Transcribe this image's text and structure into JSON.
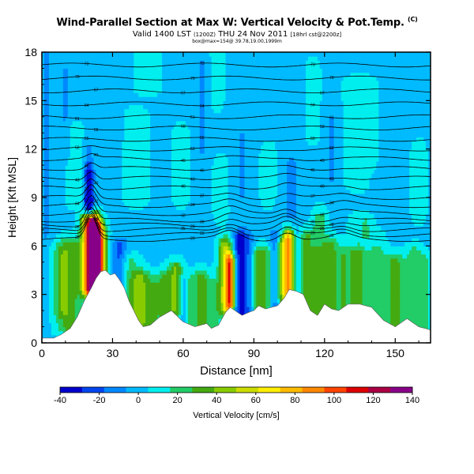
{
  "header": {
    "title": "Wind-Parallel Section at Max W: Vertical Velocity & Pot.Temp.",
    "title_mark": "(C)",
    "valid_line": "Valid 1400 LST",
    "valid_small": "(1200Z)",
    "valid_date": "THU 24 Nov 2011",
    "valid_note": "[18hrl cst@2200z]",
    "region_line": "box@max=154@ 39.78,19.00,1999m"
  },
  "colors": {
    "scale": [
      "#0000cc",
      "#0044ee",
      "#0088ff",
      "#00bbff",
      "#00eeee",
      "#22cc66",
      "#44aa11",
      "#88cc00",
      "#ccdd00",
      "#ffee00",
      "#ffbb00",
      "#ff8800",
      "#ff4400",
      "#dd0000",
      "#aa0044",
      "#880088"
    ],
    "terrain": "#ffffff",
    "isentrope": "#000000"
  },
  "chart_data": {
    "type": "heatmap",
    "title": "Wind-Parallel Section at Max W: Vertical Velocity & Pot.Temp.",
    "xlabel": "Distance [nm]",
    "ylabel": "Height [Kft MSL]",
    "xlim": [
      0,
      165
    ],
    "ylim": [
      0,
      18
    ],
    "xticks": [
      0,
      30,
      60,
      90,
      120,
      150
    ],
    "yticks": [
      0,
      3,
      6,
      9,
      12,
      15,
      18
    ],
    "colorbar": {
      "label": "Vertical Velocity [cm/s]",
      "min": -40,
      "max": 140,
      "ticks": [
        -40,
        -20,
        0,
        20,
        40,
        60,
        80,
        100,
        120,
        140
      ]
    },
    "terrain_profile": {
      "x": [
        0,
        5,
        8,
        12,
        15,
        18,
        21,
        23,
        25,
        27,
        29,
        31,
        33,
        35,
        37,
        39,
        41,
        43,
        46,
        50,
        55,
        60,
        65,
        70,
        72,
        75,
        78,
        80,
        83,
        85,
        88,
        90,
        92,
        95,
        100,
        103,
        105,
        108,
        111,
        114,
        117,
        120,
        123,
        126,
        130,
        135,
        140,
        145,
        150,
        155,
        160,
        165
      ],
      "y": [
        0.3,
        0.3,
        0.5,
        0.9,
        1.6,
        2.6,
        3.4,
        4.0,
        4.4,
        4.5,
        4.2,
        4.3,
        3.9,
        3.4,
        2.6,
        2.0,
        1.4,
        1.0,
        1.1,
        1.6,
        2.0,
        1.3,
        1.0,
        1.2,
        0.9,
        1.1,
        1.9,
        2.2,
        1.9,
        1.7,
        1.9,
        2.0,
        2.3,
        2.1,
        2.3,
        2.8,
        3.3,
        3.2,
        3.0,
        2.0,
        1.7,
        2.4,
        2.1,
        2.0,
        2.4,
        2.4,
        2.2,
        1.4,
        1.0,
        1.5,
        1.0,
        0.8
      ]
    },
    "isentropes": {
      "units": "potential temperature",
      "levels": [
        {
          "h": 6.4,
          "label": "20"
        },
        {
          "h": 6.7,
          "label": "23"
        },
        {
          "h": 7.0,
          "label": "25"
        },
        {
          "h": 7.3,
          "label": "28"
        },
        {
          "h": 7.6,
          "label": "30"
        },
        {
          "h": 8.0,
          "label": "32"
        },
        {
          "h": 8.5,
          "label": "34"
        },
        {
          "h": 9.0,
          "label": "37"
        },
        {
          "h": 9.6,
          "label": "40"
        },
        {
          "h": 10.2,
          "label": "43"
        },
        {
          "h": 10.8,
          "label": "46"
        },
        {
          "h": 11.4,
          "label": "49"
        },
        {
          "h": 12.0,
          "label": "52"
        },
        {
          "h": 12.6,
          "label": "55"
        },
        {
          "h": 13.3,
          "label": "58"
        },
        {
          "h": 14.0,
          "label": "61"
        },
        {
          "h": 14.8,
          "label": "64"
        },
        {
          "h": 15.6,
          "label": "67"
        },
        {
          "h": 16.4,
          "label": "70"
        },
        {
          "h": 17.2,
          "label": "73"
        }
      ]
    },
    "features": [
      {
        "x": 21,
        "ylo": 3.4,
        "yhi": 7.5,
        "w": 3.5,
        "value": 140
      },
      {
        "x": 24,
        "ylo": 3.6,
        "yhi": 7.0,
        "w": 2.5,
        "value": 60
      },
      {
        "x": 26,
        "ylo": 4.0,
        "yhi": 6.5,
        "w": 2.5,
        "value": 25
      },
      {
        "x": 12,
        "ylo": 1.0,
        "yhi": 6.0,
        "w": 5.0,
        "value": 30
      },
      {
        "x": 8,
        "ylo": 2.0,
        "yhi": 5.5,
        "w": 3.0,
        "value": 18
      },
      {
        "x": 33,
        "ylo": 3.0,
        "yhi": 6.0,
        "w": 3.5,
        "value": -25
      },
      {
        "x": 37,
        "ylo": 2.0,
        "yhi": 5.0,
        "w": 4.0,
        "value": 20
      },
      {
        "x": 42,
        "ylo": 1.2,
        "yhi": 4.0,
        "w": 4.0,
        "value": 35
      },
      {
        "x": 47,
        "ylo": 1.3,
        "yhi": 3.5,
        "w": 3.0,
        "value": 20
      },
      {
        "x": 52,
        "ylo": 1.8,
        "yhi": 4.0,
        "w": 3.0,
        "value": 28
      },
      {
        "x": 57,
        "ylo": 2.0,
        "yhi": 4.5,
        "w": 3.0,
        "value": 38
      },
      {
        "x": 60,
        "ylo": 1.4,
        "yhi": 3.8,
        "w": 2.5,
        "value": -20
      },
      {
        "x": 63,
        "ylo": 1.2,
        "yhi": 3.8,
        "w": 3.0,
        "value": 20
      },
      {
        "x": 68,
        "ylo": 1.2,
        "yhi": 4.0,
        "w": 3.0,
        "value": 28
      },
      {
        "x": 73,
        "ylo": 1.2,
        "yhi": 3.5,
        "w": 3.0,
        "value": 18
      },
      {
        "x": 78,
        "ylo": 2.2,
        "yhi": 6.0,
        "w": 3.0,
        "value": 50
      },
      {
        "x": 80,
        "ylo": 2.5,
        "yhi": 5.0,
        "w": 2.0,
        "value": 75
      },
      {
        "x": 84,
        "ylo": 2.0,
        "yhi": 6.5,
        "w": 3.0,
        "value": -35
      },
      {
        "x": 88,
        "ylo": 2.0,
        "yhi": 6.5,
        "w": 3.0,
        "value": -15
      },
      {
        "x": 92,
        "ylo": 2.3,
        "yhi": 5.5,
        "w": 3.0,
        "value": 30
      },
      {
        "x": 96,
        "ylo": 2.3,
        "yhi": 5.5,
        "w": 2.5,
        "value": 20
      },
      {
        "x": 99,
        "ylo": 2.3,
        "yhi": 6.5,
        "w": 2.5,
        "value": -22
      },
      {
        "x": 102,
        "ylo": 2.8,
        "yhi": 6.0,
        "w": 2.5,
        "value": 38
      },
      {
        "x": 105,
        "ylo": 3.3,
        "yhi": 6.5,
        "w": 2.5,
        "value": 78
      },
      {
        "x": 108,
        "ylo": 3.2,
        "yhi": 6.5,
        "w": 2.5,
        "value": -22
      },
      {
        "x": 112,
        "ylo": 2.0,
        "yhi": 6.5,
        "w": 4.0,
        "value": 28
      },
      {
        "x": 117,
        "ylo": 1.8,
        "yhi": 5.5,
        "w": 3.0,
        "value": 22
      },
      {
        "x": 122,
        "ylo": 2.2,
        "yhi": 6.0,
        "w": 3.5,
        "value": 30
      },
      {
        "x": 128,
        "ylo": 2.0,
        "yhi": 5.5,
        "w": 3.5,
        "value": 22
      },
      {
        "x": 134,
        "ylo": 2.4,
        "yhi": 5.5,
        "w": 3.5,
        "value": 30
      },
      {
        "x": 142,
        "ylo": 1.4,
        "yhi": 5.5,
        "w": 4.0,
        "value": 22
      },
      {
        "x": 150,
        "ylo": 1.0,
        "yhi": 5.0,
        "w": 4.0,
        "value": 28
      },
      {
        "x": 158,
        "ylo": 1.3,
        "yhi": 5.5,
        "w": 3.5,
        "value": 20
      },
      {
        "x": 163,
        "ylo": 1.0,
        "yhi": 5.0,
        "w": 2.5,
        "value": 15
      },
      {
        "x": 20,
        "ylo": 8.8,
        "yhi": 10.5,
        "w": 2.0,
        "value": -30
      },
      {
        "x": 20,
        "ylo": 8.2,
        "yhi": 8.8,
        "w": 1.8,
        "value": -38
      },
      {
        "x": 20,
        "ylo": 10.5,
        "yhi": 12.0,
        "w": 2.5,
        "value": -12
      },
      {
        "x": 2,
        "ylo": 7.0,
        "yhi": 17.5,
        "w": 2.0,
        "value": -15
      },
      {
        "x": 10,
        "ylo": 12.0,
        "yhi": 17.0,
        "w": 2.5,
        "value": -10
      },
      {
        "x": 30,
        "ylo": 13.0,
        "yhi": 17.0,
        "w": 3.0,
        "value": -8
      },
      {
        "x": 68,
        "ylo": 12.0,
        "yhi": 17.5,
        "w": 3.0,
        "value": -10
      },
      {
        "x": 85,
        "ylo": 9.0,
        "yhi": 13.0,
        "w": 2.5,
        "value": -10
      },
      {
        "x": 93,
        "ylo": 13.0,
        "yhi": 17.0,
        "w": 3.0,
        "value": -8
      },
      {
        "x": 106,
        "ylo": 8.0,
        "yhi": 11.0,
        "w": 2.5,
        "value": -15
      },
      {
        "x": 108,
        "ylo": 14.0,
        "yhi": 17.5,
        "w": 2.5,
        "value": -8
      },
      {
        "x": 123,
        "ylo": 10.0,
        "yhi": 14.0,
        "w": 3.0,
        "value": -10
      },
      {
        "x": 142,
        "ylo": 7.5,
        "yhi": 10.0,
        "w": 3.0,
        "value": -8
      },
      {
        "x": 155,
        "ylo": 13.5,
        "yhi": 17.0,
        "w": 2.5,
        "value": -8
      },
      {
        "x": 14,
        "ylo": 9.0,
        "yhi": 13.0,
        "w": 3.0,
        "value": 12
      },
      {
        "x": 40,
        "ylo": 9.0,
        "yhi": 14.0,
        "w": 5.0,
        "value": 8
      },
      {
        "x": 45,
        "ylo": 16.0,
        "yhi": 18.0,
        "w": 5.0,
        "value": 10
      },
      {
        "x": 59,
        "ylo": 9.0,
        "yhi": 13.0,
        "w": 3.5,
        "value": 8
      },
      {
        "x": 74,
        "ylo": 15.0,
        "yhi": 18.0,
        "w": 3.0,
        "value": 8
      },
      {
        "x": 76,
        "ylo": 8.0,
        "yhi": 11.0,
        "w": 3.0,
        "value": 8
      },
      {
        "x": 96,
        "ylo": 9.0,
        "yhi": 12.0,
        "w": 3.0,
        "value": 8
      },
      {
        "x": 115,
        "ylo": 13.0,
        "yhi": 17.0,
        "w": 3.0,
        "value": 8
      },
      {
        "x": 135,
        "ylo": 10.0,
        "yhi": 16.0,
        "w": 6.0,
        "value": 10
      },
      {
        "x": 160,
        "ylo": 8.0,
        "yhi": 12.0,
        "w": 3.0,
        "value": 8
      },
      {
        "x": 138,
        "ylo": 6.8,
        "yhi": 7.5,
        "w": 6.0,
        "value": 15
      },
      {
        "x": 118,
        "ylo": 6.8,
        "yhi": 7.8,
        "w": 3.0,
        "value": 18
      }
    ]
  }
}
